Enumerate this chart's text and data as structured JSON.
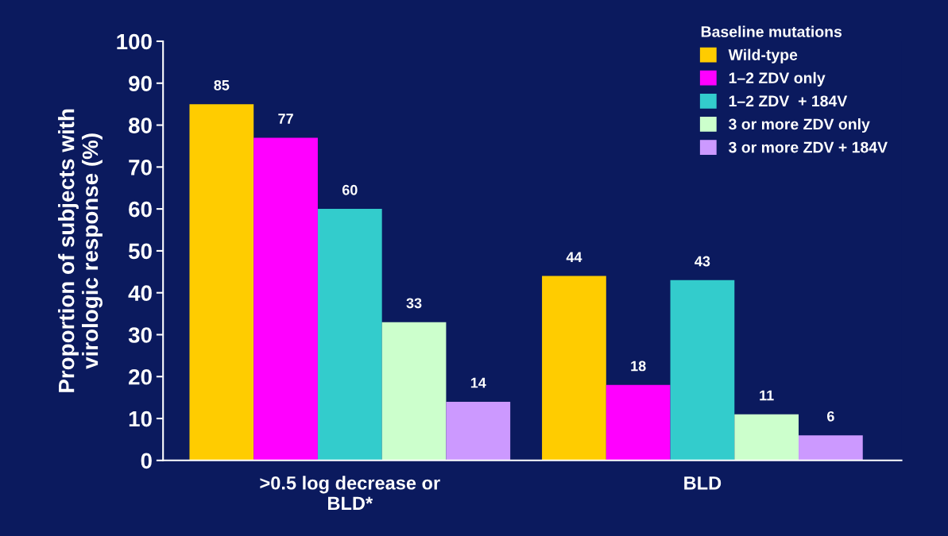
{
  "chart_data": {
    "type": "bar",
    "ylabel": "Proportion of subjects with\nvirologic response (%)",
    "legend_title": "Baseline mutations",
    "categories": [
      ">0.5 log decrease or\nBLD*",
      "BLD"
    ],
    "series": [
      {
        "name": "Wild-type",
        "color": "#ffcc00",
        "values": [
          85,
          44
        ]
      },
      {
        "name": "1–2 ZDV only",
        "color": "#ff00ff",
        "values": [
          77,
          18
        ]
      },
      {
        "name": "1–2 ZDV  + 184V",
        "color": "#33cccc",
        "values": [
          60,
          43
        ]
      },
      {
        "name": "3 or more ZDV only",
        "color": "#ccffcc",
        "values": [
          33,
          11
        ]
      },
      {
        "name": "3 or more ZDV + 184V",
        "color": "#cc99ff",
        "values": [
          14,
          6
        ]
      }
    ],
    "ylim": [
      0,
      100
    ],
    "yticks": [
      0,
      10,
      20,
      30,
      40,
      50,
      60,
      70,
      80,
      90,
      100
    ],
    "data_labels": true,
    "legend": "top right",
    "grid": false
  }
}
